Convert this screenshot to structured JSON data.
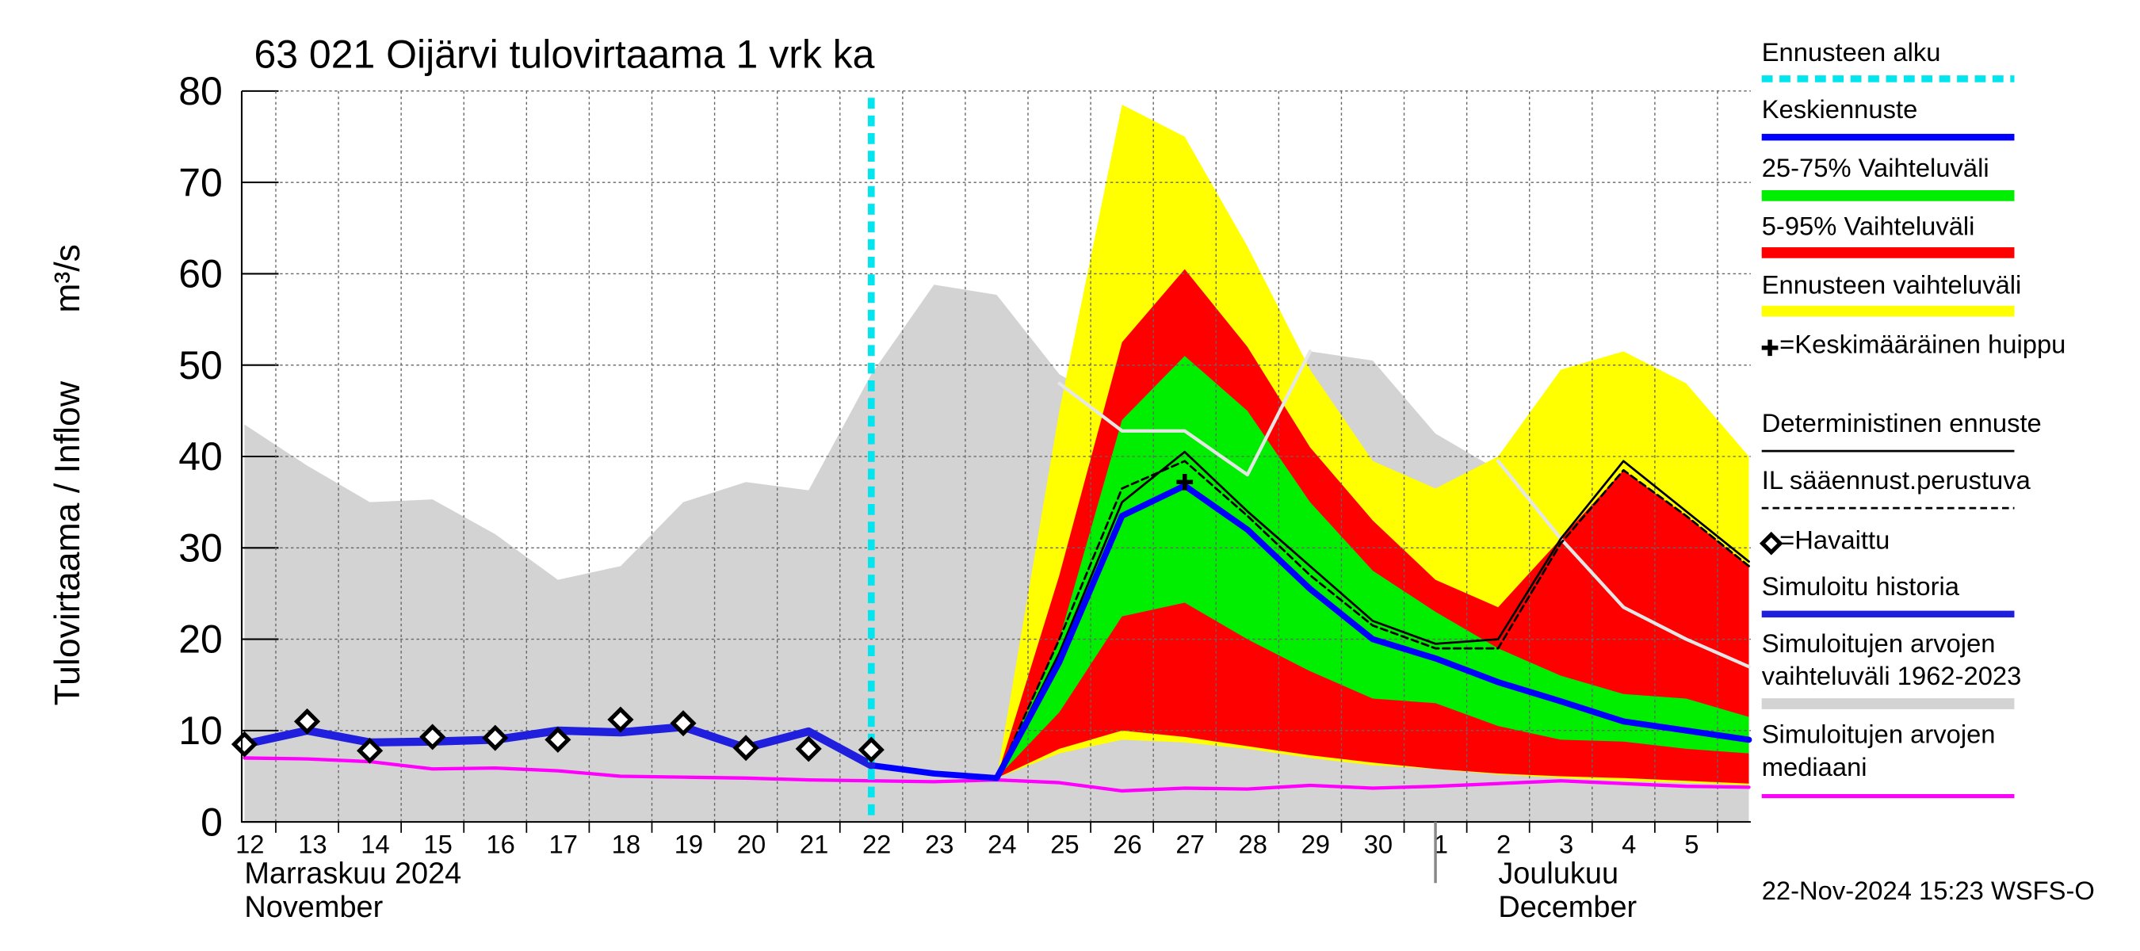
{
  "chart_data": {
    "type": "line",
    "title": "63 021 Oijärvi tulovirtaama 1 vrk ka",
    "ylabel": "Tulovirtaama / Inflow",
    "yunit": "m³/s",
    "categories": [
      "12",
      "13",
      "14",
      "15",
      "16",
      "17",
      "18",
      "19",
      "20",
      "21",
      "22",
      "23",
      "24",
      "25",
      "26",
      "27",
      "28",
      "29",
      "30",
      "1",
      "2",
      "3",
      "4",
      "5",
      null
    ],
    "ylim": [
      0,
      80
    ],
    "yticks": [
      0,
      10,
      20,
      30,
      40,
      50,
      60,
      70,
      80
    ],
    "grid": true,
    "months": [
      {
        "category": "12",
        "label": "Marraskuu 2024",
        "sub": "November"
      },
      {
        "category": "1",
        "label": "Joulukuu",
        "sub": "December"
      }
    ],
    "forecast_start": {
      "name": "Ennusteen alku",
      "category": "22",
      "color": "#00e5ee"
    },
    "series": [
      {
        "name": "Keskiennuste",
        "style": "line",
        "weight": "heavy",
        "color": "#0000ff",
        "values": [
          null,
          null,
          null,
          null,
          null,
          null,
          null,
          null,
          null,
          null,
          6.2,
          5.3,
          4.8,
          17.5,
          33.5,
          36.8,
          32,
          25.5,
          20,
          17.9,
          15.3,
          13.2,
          11,
          10,
          9
        ]
      },
      {
        "name": "25-75% Vaihteluväli",
        "style": "band",
        "color": "#00ee00",
        "low": [
          null,
          null,
          null,
          null,
          null,
          null,
          null,
          null,
          null,
          null,
          null,
          null,
          4.8,
          12,
          22.5,
          24,
          20,
          16.5,
          13.5,
          13,
          10.5,
          9,
          8.8,
          8,
          7.5
        ],
        "high": [
          null,
          null,
          null,
          null,
          null,
          null,
          null,
          null,
          null,
          null,
          null,
          null,
          4.8,
          20,
          44,
          51,
          45,
          35,
          27.5,
          23,
          19,
          16,
          14,
          13.5,
          11.5
        ]
      },
      {
        "name": "5-95% Vaihteluväli",
        "style": "band",
        "color": "#ff0000",
        "low": [
          null,
          null,
          null,
          null,
          null,
          null,
          null,
          null,
          null,
          null,
          null,
          null,
          4.8,
          8,
          10,
          9.3,
          8.3,
          7.3,
          6.5,
          5.8,
          5.3,
          5,
          4.8,
          4.5,
          4.2
        ],
        "high": [
          null,
          null,
          null,
          null,
          null,
          null,
          null,
          null,
          null,
          null,
          null,
          null,
          4.8,
          27,
          52.5,
          60.5,
          52,
          41,
          33,
          26.5,
          23.5,
          31,
          38.5,
          33.5,
          28
        ]
      },
      {
        "name": "Ennusteen vaihteluväli",
        "style": "band",
        "color": "#ffff00",
        "low": [
          null,
          null,
          null,
          null,
          null,
          null,
          null,
          null,
          null,
          null,
          null,
          null,
          4.8,
          7.5,
          9,
          8.7,
          8,
          7,
          6.2,
          5.8,
          5.2,
          4.8,
          4.5,
          4.3,
          4
        ],
        "high": [
          null,
          null,
          null,
          null,
          null,
          null,
          null,
          null,
          null,
          null,
          null,
          null,
          4.8,
          45,
          78.5,
          75,
          63,
          49.5,
          39.5,
          36.5,
          40,
          49.5,
          51.5,
          48,
          40
        ]
      },
      {
        "name": "=Keskimääräinen huippu",
        "style": "cross",
        "color": "#000000",
        "values": [
          null,
          null,
          null,
          null,
          null,
          null,
          null,
          null,
          null,
          null,
          null,
          null,
          null,
          null,
          null,
          37.2,
          null,
          null,
          null,
          null,
          null,
          null,
          null,
          null,
          null
        ]
      },
      {
        "name": "Deterministinen ennuste",
        "style": "line",
        "weight": "thin",
        "color": "#000000",
        "values": [
          null,
          null,
          null,
          null,
          null,
          null,
          null,
          null,
          null,
          null,
          null,
          null,
          4.8,
          18.5,
          35,
          40.5,
          34,
          28,
          22,
          19.5,
          20,
          31,
          39.5,
          34,
          28.5
        ]
      },
      {
        "name": "IL sääennust.perustuva",
        "style": "dashed",
        "color": "#000000",
        "values": [
          null,
          null,
          null,
          null,
          null,
          null,
          null,
          null,
          null,
          null,
          null,
          null,
          4.8,
          20,
          36.5,
          39.5,
          33.5,
          27,
          21.5,
          19,
          19,
          30.5,
          38.5,
          33.5,
          28
        ]
      },
      {
        "name": "=Havaittu",
        "style": "diamond",
        "color": "#000000",
        "values": [
          8.5,
          11,
          7.8,
          9.3,
          9.2,
          9,
          11.2,
          10.8,
          8.1,
          8,
          7.9,
          null,
          null,
          null,
          null,
          null,
          null,
          null,
          null,
          null,
          null,
          null,
          null,
          null,
          null
        ]
      },
      {
        "name": "Simuloitu historia",
        "style": "line",
        "weight": "heaviest",
        "color": "#1f1fdd",
        "values": [
          8.5,
          10,
          8.7,
          8.8,
          9,
          10,
          9.8,
          10.4,
          8.1,
          9.9,
          6.2,
          null,
          null,
          null,
          null,
          null,
          null,
          null,
          null,
          null,
          null,
          null,
          null,
          null,
          null
        ]
      },
      {
        "name": "Simuloitujen arvojen vaihteluväli 1962-2023",
        "style": "band",
        "color": "#d3d3d3",
        "low": [
          0,
          0,
          0,
          0,
          0,
          0,
          0,
          0,
          0,
          0,
          0,
          0,
          0,
          0,
          0,
          0,
          0,
          0,
          0,
          0,
          0,
          0,
          0,
          0,
          0
        ],
        "high": [
          43.5,
          39,
          35,
          35.3,
          31.5,
          26.5,
          28,
          35,
          37.2,
          36.3,
          49,
          58.8,
          57.7,
          49,
          45,
          44,
          40,
          51.5,
          50.5,
          42.5,
          38.5,
          31,
          29,
          27,
          28
        ]
      },
      {
        "name": "Simuloitujen arvojen mediaani",
        "style": "line",
        "weight": "normal",
        "color": "#ff00ff",
        "values": [
          7,
          6.9,
          6.6,
          5.8,
          5.9,
          5.6,
          5,
          4.9,
          4.8,
          4.6,
          4.5,
          4.4,
          4.6,
          4.3,
          3.4,
          3.7,
          3.6,
          4,
          3.7,
          3.9,
          4.2,
          4.5,
          4.2,
          3.9,
          3.8
        ]
      },
      {
        "style": "line",
        "weight": "normal",
        "color": "#e6e6e6",
        "values": [
          null,
          null,
          null,
          null,
          null,
          null,
          null,
          null,
          null,
          null,
          null,
          null,
          null,
          48,
          42.8,
          42.8,
          38,
          51.5,
          null,
          null,
          39.5,
          31,
          23.5,
          20,
          17
        ]
      }
    ],
    "timestamp": "22-Nov-2024 15:23 WSFS-O"
  }
}
